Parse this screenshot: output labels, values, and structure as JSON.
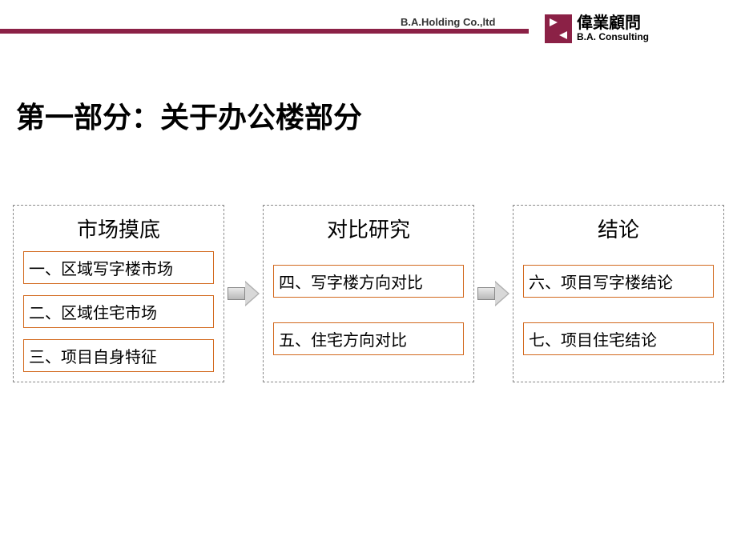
{
  "header": {
    "bar_color": "#8b2146",
    "company_text": "B.A.Holding Co.,ltd",
    "logo_cn": "偉業顧問",
    "logo_en": "B.A. Consulting"
  },
  "title": "第一部分：关于办公楼部分",
  "columns": [
    {
      "title": "市场摸底",
      "items": [
        "一、区域写字楼市场",
        "二、区域住宅市场",
        "三、项目自身特征"
      ]
    },
    {
      "title": "对比研究",
      "items": [
        "四、写字楼方向对比",
        "五、住宅方向对比"
      ]
    },
    {
      "title": "结论",
      "items": [
        "六、项目写字楼结论",
        "七、项目住宅结论"
      ]
    }
  ],
  "style": {
    "column_border": "#888888",
    "column_border_style": "dashed",
    "item_border_color": "#d2691e",
    "title_fontsize": 36,
    "col_title_fontsize": 26,
    "item_fontsize": 20,
    "background": "#ffffff"
  }
}
